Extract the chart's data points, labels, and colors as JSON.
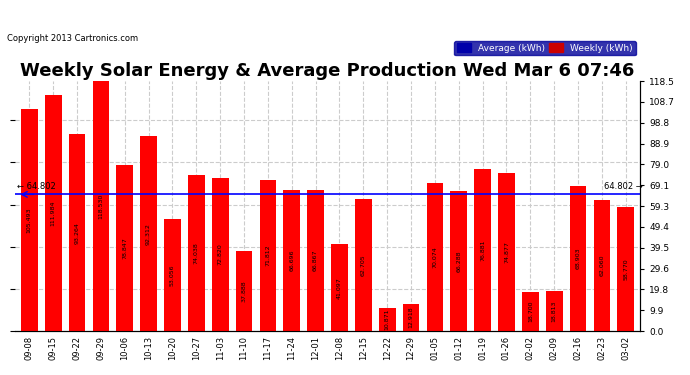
{
  "title": "Weekly Solar Energy & Average Production Wed Mar 6 07:46",
  "copyright": "Copyright 2013 Cartronics.com",
  "categories": [
    "09-08",
    "09-15",
    "09-22",
    "09-29",
    "10-06",
    "10-13",
    "10-20",
    "10-27",
    "11-03",
    "11-10",
    "11-17",
    "11-24",
    "12-01",
    "12-08",
    "12-15",
    "12-22",
    "12-29",
    "01-05",
    "01-12",
    "01-19",
    "01-26",
    "02-02",
    "02-09",
    "02-16",
    "02-23",
    "03-02"
  ],
  "values": [
    105.493,
    111.984,
    93.264,
    118.53,
    78.847,
    92.312,
    53.056,
    74.038,
    72.82,
    37.888,
    71.812,
    66.696,
    66.867,
    41.097,
    62.705,
    10.871,
    12.918,
    70.074,
    66.288,
    76.881,
    74.877,
    18.7,
    18.813,
    68.903,
    62.06,
    58.77
  ],
  "average": 64.802,
  "bar_color": "#ff0000",
  "avg_line_color": "#0000ff",
  "background_color": "#ffffff",
  "grid_color": "#cccccc",
  "title_fontsize": 13,
  "ylabel_right": [
    "118.5",
    "108.7",
    "98.8",
    "88.9",
    "79.0",
    "69.1",
    "59.3",
    "49.4",
    "39.5",
    "29.6",
    "19.8",
    "9.9",
    "0.0"
  ],
  "ymax": 118.5,
  "ymin": 0.0,
  "legend_avg_color": "#0000aa",
  "legend_weekly_color": "#cc0000"
}
